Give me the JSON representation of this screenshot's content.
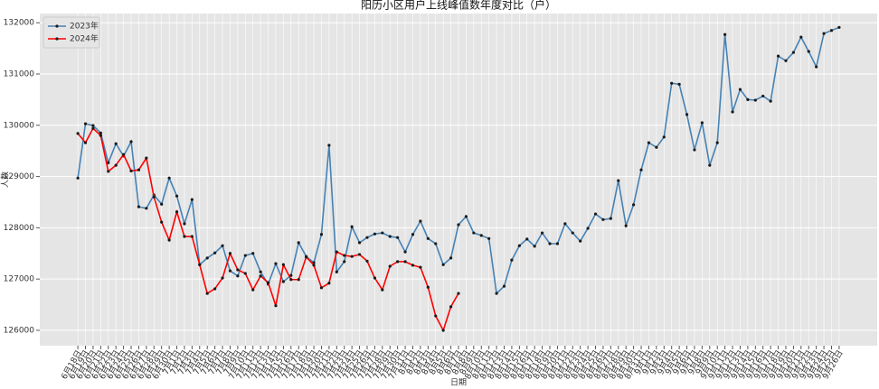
{
  "chart_data": {
    "type": "line",
    "title": "阳历小区用户上线峰值数年度对比（户）",
    "x_label": "日期",
    "y_label": "人数",
    "categories": [
      "6月18日",
      "6月19日",
      "6月20日",
      "6月21日",
      "6月22日",
      "6月23日",
      "6月24日",
      "6月25日",
      "6月26日",
      "6月27日",
      "6月28日",
      "6月29日",
      "6月30日",
      "7月1日",
      "7月2日",
      "7月3日",
      "7月4日",
      "7月5日",
      "7月6日",
      "7月7日",
      "7月8日",
      "7月9日",
      "7月10日",
      "7月11日",
      "7月12日",
      "7月13日",
      "7月14日",
      "7月15日",
      "7月16日",
      "7月17日",
      "7月18日",
      "7月19日",
      "7月20日",
      "7月21日",
      "7月22日",
      "7月23日",
      "7月24日",
      "7月25日",
      "7月26日",
      "7月27日",
      "7月28日",
      "7月29日",
      "7月30日",
      "7月31日",
      "8月1日",
      "8月2日",
      "8月3日",
      "8月4日",
      "8月5日",
      "8月6日",
      "8月7日",
      "8月8日",
      "8月9日",
      "8月10日",
      "8月11日",
      "8月12日",
      "8月13日",
      "8月14日",
      "8月15日",
      "8月16日",
      "8月17日",
      "8月18日",
      "8月19日",
      "8月20日",
      "8月21日",
      "8月22日",
      "8月23日",
      "8月24日",
      "8月25日",
      "8月26日",
      "8月27日",
      "8月28日",
      "8月29日",
      "8月30日",
      "8月31日",
      "9月1日",
      "9月2日",
      "9月3日",
      "9月4日",
      "9月5日",
      "9月6日",
      "9月7日",
      "9月8日",
      "9月9日",
      "9月10日",
      "9月11日",
      "9月12日",
      "9月13日",
      "9月14日",
      "9月15日",
      "9月16日",
      "9月17日",
      "9月18日",
      "9月19日",
      "9月20日",
      "9月21日",
      "9月22日",
      "9月23日",
      "9月24日",
      "9月25日",
      "9月26日"
    ],
    "series": [
      {
        "name": "2023年",
        "color": "#4682b4",
        "values": [
          128970,
          130030,
          129995,
          129850,
          129270,
          129640,
          129400,
          129680,
          128410,
          128380,
          128640,
          128460,
          128970,
          128620,
          128080,
          128550,
          127280,
          127410,
          127510,
          127650,
          127160,
          127060,
          127460,
          127500,
          127140,
          126900,
          127300,
          126950,
          127070,
          127710,
          127440,
          127320,
          127870,
          129610,
          127140,
          127340,
          128020,
          127710,
          127810,
          127880,
          127900,
          127830,
          127810,
          127530,
          127870,
          128130,
          127790,
          127690,
          127280,
          127410,
          128060,
          128220,
          127900,
          127850,
          127790,
          126720,
          126860,
          127370,
          127650,
          127780,
          127640,
          127900,
          127690,
          127690,
          128080,
          127900,
          127740,
          127990,
          128270,
          128160,
          128180,
          128920,
          128040,
          128450,
          129130,
          129660,
          129570,
          129770,
          130820,
          130800,
          130210,
          129520,
          130050,
          129220,
          129660,
          131770,
          130260,
          130700,
          130500,
          130490,
          130570,
          130470,
          131350,
          131260,
          131420,
          131720,
          131440,
          131140,
          131790,
          131850,
          131910
        ]
      },
      {
        "name": "2024年",
        "color": "#ff0000",
        "values": [
          129840,
          129660,
          129940,
          129800,
          129100,
          129220,
          129430,
          129110,
          129130,
          129360,
          128600,
          128110,
          127760,
          128310,
          127830,
          127830,
          127280,
          126720,
          126810,
          127020,
          127500,
          127180,
          127110,
          126790,
          127060,
          126930,
          126480,
          127280,
          126990,
          126990,
          127430,
          127270,
          126830,
          126920,
          127530,
          127460,
          127440,
          127480,
          127350,
          127020,
          126790,
          127250,
          127340,
          127340,
          127270,
          127230,
          126840,
          126280,
          126000,
          126460,
          126720,
          null,
          null,
          null,
          null,
          null,
          null,
          null,
          null,
          null,
          null,
          null,
          null,
          null,
          null,
          null,
          null,
          null,
          null,
          null,
          null,
          null,
          null,
          null,
          null,
          null,
          null,
          null,
          null,
          null,
          null,
          null,
          null,
          null,
          null,
          null,
          null,
          null,
          null,
          null,
          null,
          null,
          null,
          null,
          null,
          null,
          null,
          null,
          null,
          null,
          null
        ]
      }
    ],
    "ylim": [
      125700,
      132180
    ],
    "yticks": [
      126000,
      127000,
      128000,
      129000,
      130000,
      131000,
      132000
    ],
    "grid": true,
    "legend": "upper left",
    "marker_color": "#1a1a1a",
    "background": "#e5e5e5"
  }
}
